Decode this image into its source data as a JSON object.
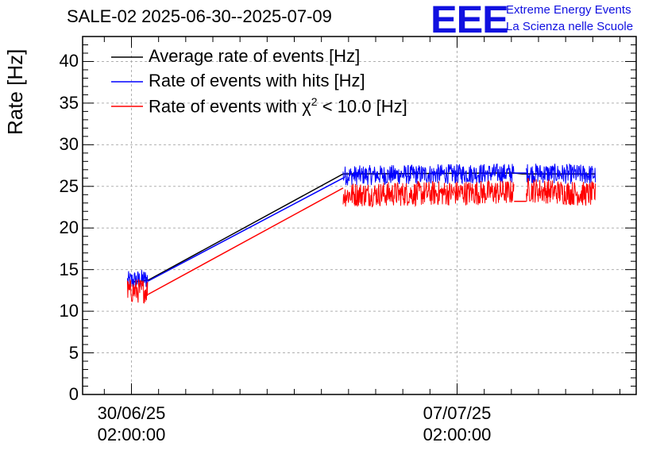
{
  "chart_data": {
    "type": "line",
    "title": "SALE-02 2025-06-30--2025-07-09",
    "xlabel": "",
    "ylabel": "Rate [Hz]",
    "ylim": [
      0,
      43
    ],
    "yticks": [
      0,
      5,
      10,
      15,
      20,
      25,
      30,
      35,
      40
    ],
    "ytick_labels": [
      "0",
      "5",
      "10",
      "15",
      "20",
      "25",
      "30",
      "35",
      "40"
    ],
    "xlim_days": [
      -0.6,
      6.2
    ],
    "xticks": [
      {
        "day": 0,
        "date": "30/06/25",
        "time": "02:00:00"
      },
      {
        "day": 4,
        "date": "07/07/25",
        "time": "02:00:00"
      }
    ],
    "grid": true,
    "legend_position": "top-left",
    "series": [
      {
        "name": "Average rate of events [Hz]",
        "color": "#000000",
        "noise": 0.0,
        "points": [
          [
            0.0,
            13.5
          ],
          [
            0.2,
            13.7
          ],
          [
            2.6,
            26.5
          ],
          [
            4.7,
            26.6
          ],
          [
            4.8,
            26.5
          ],
          [
            5.7,
            26.5
          ]
        ]
      },
      {
        "name": "Rate of events with hits [Hz]",
        "color": "#0000ff",
        "noise": 1.2,
        "segments": [
          [
            [
              -0.05,
              13.6
            ],
            [
              0.2,
              13.9
            ]
          ],
          [
            [
              2.6,
              26.3
            ],
            [
              4.7,
              26.6
            ]
          ],
          [
            [
              4.85,
              26.6
            ],
            [
              5.7,
              26.4
            ]
          ]
        ],
        "joins": [
          [
            [
              0.2,
              13.6
            ],
            [
              2.6,
              26.0
            ]
          ],
          [
            [
              4.7,
              26.6
            ],
            [
              4.85,
              26.6
            ]
          ]
        ]
      },
      {
        "name": "Rate of events with χ² < 10.0 [Hz]",
        "color": "#ff0000",
        "noise": 1.5,
        "segments": [
          [
            [
              -0.05,
              12.4
            ],
            [
              0.2,
              12.5
            ]
          ],
          [
            [
              2.6,
              24.0
            ],
            [
              4.7,
              24.3
            ]
          ],
          [
            [
              4.85,
              24.6
            ],
            [
              5.7,
              24.0
            ]
          ]
        ],
        "joins": [
          [
            [
              0.2,
              12.0
            ],
            [
              2.6,
              24.8
            ]
          ],
          [
            [
              4.7,
              23.2
            ],
            [
              4.85,
              23.2
            ]
          ]
        ]
      }
    ],
    "legend": [
      {
        "label_main": "Rate of events with ",
        "label_sym": "χ",
        "label_sup": "2",
        "label_tail": " < 10.0 [Hz]"
      }
    ]
  },
  "logo": {
    "mark": "EEE",
    "line1": "Extreme Energy Events",
    "line2": "La Scienza nelle Scuole"
  }
}
